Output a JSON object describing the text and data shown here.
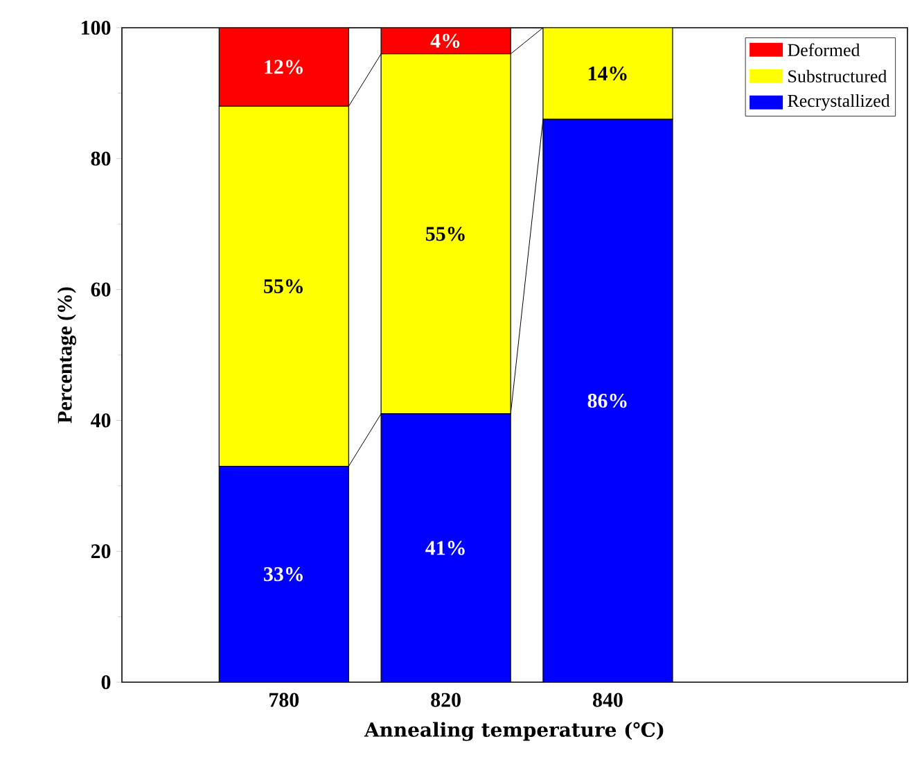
{
  "chart_data": {
    "type": "bar",
    "stacked": true,
    "xlabel": "Annealing temperature (℃)",
    "ylabel": "Percentage (%)",
    "categories": [
      "780",
      "820",
      "840"
    ],
    "series": [
      {
        "name": "Recrystallized",
        "color": "#0000ff",
        "values": [
          33,
          41,
          86
        ],
        "value_labels": [
          "33%",
          "41%",
          "86%"
        ]
      },
      {
        "name": "Substructured",
        "color": "#ffff00",
        "values": [
          55,
          55,
          14
        ],
        "value_labels": [
          "55%",
          "55%",
          "14%"
        ]
      },
      {
        "name": "Deformed",
        "color": "#ff0000",
        "values": [
          12,
          4,
          0
        ],
        "value_labels": [
          "12%",
          "4%",
          null
        ]
      }
    ],
    "ylim": [
      0,
      100
    ],
    "yticks": [
      0,
      20,
      40,
      60,
      80,
      100
    ],
    "legend": "top right"
  }
}
